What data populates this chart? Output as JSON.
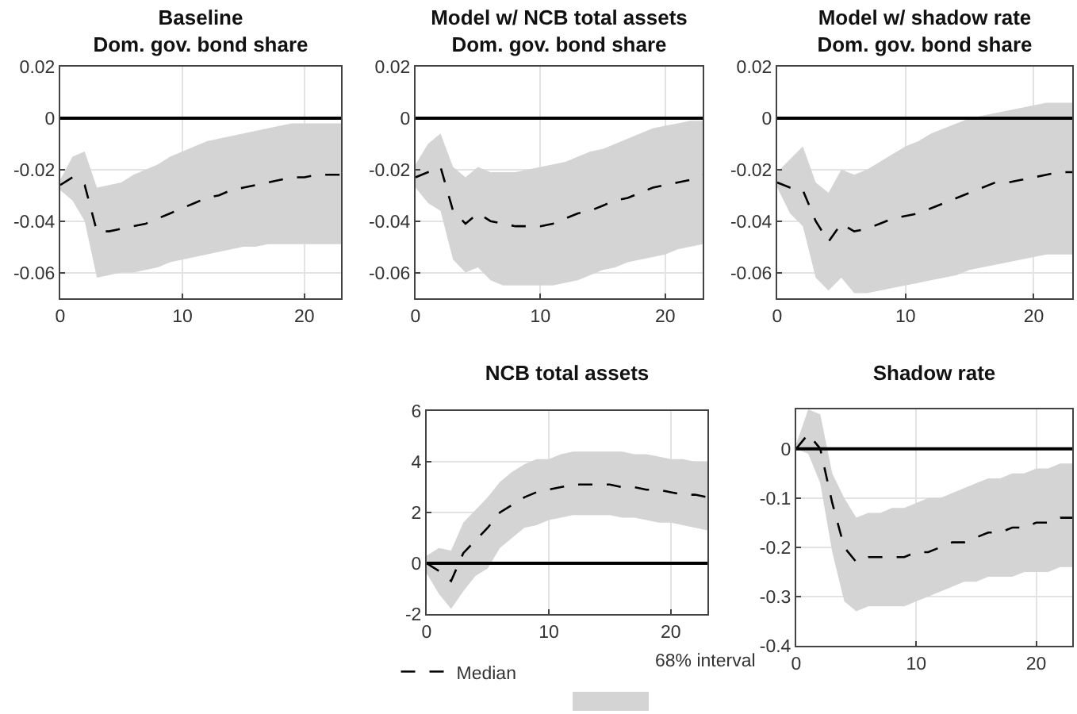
{
  "chart_data": [
    {
      "type": "line",
      "title": "Baseline",
      "subtitle": "Dom. gov. bond share",
      "x": [
        0,
        1,
        2,
        3,
        4,
        5,
        6,
        7,
        8,
        9,
        10,
        11,
        12,
        13,
        14,
        15,
        16,
        17,
        18,
        19,
        20,
        21,
        22,
        23
      ],
      "xlim": [
        0,
        23
      ],
      "xticks": [
        0,
        10,
        20
      ],
      "ylim": [
        -0.07,
        0.02
      ],
      "yticks": [
        -0.06,
        -0.04,
        -0.02,
        0,
        0.02
      ],
      "grid": true,
      "legend": false,
      "ref_lines": [
        {
          "axis": "y",
          "value": 0,
          "color": "#000000"
        }
      ],
      "series": [
        {
          "color": "#000000",
          "line_style": "dashed",
          "values": [
            -0.026,
            -0.023,
            -0.026,
            -0.044,
            -0.044,
            -0.043,
            -0.042,
            -0.041,
            -0.039,
            -0.037,
            -0.035,
            -0.033,
            -0.031,
            -0.03,
            -0.028,
            -0.027,
            -0.026,
            -0.025,
            -0.024,
            -0.023,
            -0.023,
            -0.022,
            -0.022,
            -0.022
          ],
          "lower": [
            -0.028,
            -0.032,
            -0.04,
            -0.062,
            -0.061,
            -0.06,
            -0.06,
            -0.059,
            -0.058,
            -0.056,
            -0.055,
            -0.054,
            -0.053,
            -0.052,
            -0.051,
            -0.05,
            -0.05,
            -0.049,
            -0.049,
            -0.049,
            -0.049,
            -0.049,
            -0.049,
            -0.049
          ],
          "upper": [
            -0.024,
            -0.015,
            -0.013,
            -0.027,
            -0.026,
            -0.025,
            -0.022,
            -0.02,
            -0.018,
            -0.015,
            -0.013,
            -0.011,
            -0.009,
            -0.008,
            -0.007,
            -0.006,
            -0.005,
            -0.004,
            -0.003,
            -0.002,
            -0.002,
            -0.002,
            -0.002,
            -0.002
          ]
        }
      ]
    },
    {
      "type": "line",
      "title": "Model w/ NCB total assets",
      "subtitle": "Dom. gov. bond share",
      "x": [
        0,
        1,
        2,
        3,
        4,
        5,
        6,
        7,
        8,
        9,
        10,
        11,
        12,
        13,
        14,
        15,
        16,
        17,
        18,
        19,
        20,
        21,
        22,
        23
      ],
      "xlim": [
        0,
        23
      ],
      "xticks": [
        0,
        10,
        20
      ],
      "ylim": [
        -0.07,
        0.02
      ],
      "yticks": [
        -0.06,
        -0.04,
        -0.02,
        0,
        0.02
      ],
      "grid": true,
      "legend": false,
      "ref_lines": [
        {
          "axis": "y",
          "value": 0,
          "color": "#000000"
        }
      ],
      "series": [
        {
          "color": "#000000",
          "line_style": "dashed",
          "values": [
            -0.023,
            -0.021,
            -0.019,
            -0.036,
            -0.041,
            -0.037,
            -0.04,
            -0.041,
            -0.042,
            -0.042,
            -0.042,
            -0.041,
            -0.039,
            -0.037,
            -0.036,
            -0.034,
            -0.032,
            -0.031,
            -0.029,
            -0.027,
            -0.026,
            -0.025,
            -0.024,
            -0.022
          ],
          "lower": [
            -0.027,
            -0.033,
            -0.036,
            -0.055,
            -0.06,
            -0.058,
            -0.063,
            -0.065,
            -0.065,
            -0.065,
            -0.065,
            -0.065,
            -0.064,
            -0.063,
            -0.061,
            -0.059,
            -0.058,
            -0.056,
            -0.055,
            -0.054,
            -0.053,
            -0.051,
            -0.05,
            -0.049
          ],
          "upper": [
            -0.018,
            -0.01,
            -0.006,
            -0.019,
            -0.023,
            -0.019,
            -0.021,
            -0.021,
            -0.021,
            -0.02,
            -0.019,
            -0.018,
            -0.017,
            -0.015,
            -0.013,
            -0.012,
            -0.01,
            -0.008,
            -0.006,
            -0.004,
            -0.003,
            -0.002,
            -0.001,
            -0.001
          ]
        }
      ]
    },
    {
      "type": "line",
      "title": "Model w/ shadow rate",
      "subtitle": "Dom. gov. bond share",
      "x": [
        0,
        1,
        2,
        3,
        4,
        5,
        6,
        7,
        8,
        9,
        10,
        11,
        12,
        13,
        14,
        15,
        16,
        17,
        18,
        19,
        20,
        21,
        22,
        23
      ],
      "xlim": [
        0,
        23
      ],
      "xticks": [
        0,
        10,
        20
      ],
      "ylim": [
        -0.07,
        0.02
      ],
      "yticks": [
        -0.06,
        -0.04,
        -0.02,
        0,
        0.02
      ],
      "grid": true,
      "legend": false,
      "ref_lines": [
        {
          "axis": "y",
          "value": 0,
          "color": "#000000"
        }
      ],
      "series": [
        {
          "color": "#000000",
          "line_style": "dashed",
          "values": [
            -0.025,
            -0.027,
            -0.028,
            -0.04,
            -0.048,
            -0.041,
            -0.044,
            -0.043,
            -0.041,
            -0.039,
            -0.038,
            -0.037,
            -0.035,
            -0.033,
            -0.031,
            -0.029,
            -0.027,
            -0.025,
            -0.025,
            -0.024,
            -0.023,
            -0.022,
            -0.021,
            -0.021
          ],
          "lower": [
            -0.027,
            -0.037,
            -0.042,
            -0.062,
            -0.067,
            -0.062,
            -0.068,
            -0.068,
            -0.067,
            -0.066,
            -0.065,
            -0.064,
            -0.063,
            -0.062,
            -0.061,
            -0.059,
            -0.058,
            -0.057,
            -0.056,
            -0.055,
            -0.054,
            -0.053,
            -0.053,
            -0.053
          ],
          "upper": [
            -0.021,
            -0.016,
            -0.011,
            -0.025,
            -0.029,
            -0.02,
            -0.022,
            -0.02,
            -0.017,
            -0.014,
            -0.011,
            -0.009,
            -0.006,
            -0.004,
            -0.002,
            0.0,
            0.001,
            0.002,
            0.003,
            0.004,
            0.005,
            0.006,
            0.006,
            0.006
          ]
        }
      ]
    },
    {
      "type": "line",
      "title": "NCB total assets",
      "x": [
        0,
        1,
        2,
        3,
        4,
        5,
        6,
        7,
        8,
        9,
        10,
        11,
        12,
        13,
        14,
        15,
        16,
        17,
        18,
        19,
        20,
        21,
        22,
        23
      ],
      "xlim": [
        0,
        23
      ],
      "xticks": [
        0,
        10,
        20
      ],
      "ylim": [
        -2,
        6
      ],
      "yticks": [
        -2,
        0,
        2,
        4,
        6
      ],
      "grid": true,
      "legend": "bottom",
      "annotations": [
        "68% interval"
      ],
      "ref_lines": [
        {
          "axis": "y",
          "value": 0,
          "color": "#000000"
        }
      ],
      "series": [
        {
          "name": "Median",
          "color": "#000000",
          "line_style": "dashed",
          "values": [
            0.0,
            -0.3,
            -0.7,
            0.4,
            0.9,
            1.4,
            2.0,
            2.3,
            2.6,
            2.8,
            2.9,
            3.0,
            3.1,
            3.1,
            3.1,
            3.1,
            3.0,
            3.0,
            2.9,
            2.9,
            2.8,
            2.7,
            2.7,
            2.6
          ],
          "lower": [
            -0.4,
            -1.2,
            -1.8,
            -1.1,
            -0.5,
            -0.2,
            0.6,
            1.0,
            1.4,
            1.5,
            1.7,
            1.8,
            1.9,
            1.9,
            1.9,
            1.9,
            1.8,
            1.8,
            1.7,
            1.6,
            1.6,
            1.5,
            1.4,
            1.3
          ],
          "upper": [
            0.3,
            0.6,
            0.5,
            1.6,
            2.1,
            2.6,
            3.2,
            3.6,
            3.9,
            4.1,
            4.1,
            4.3,
            4.4,
            4.4,
            4.4,
            4.4,
            4.4,
            4.3,
            4.3,
            4.2,
            4.1,
            4.1,
            4.0,
            4.0
          ]
        }
      ]
    },
    {
      "type": "line",
      "title": "Shadow rate",
      "x": [
        0,
        1,
        2,
        3,
        4,
        5,
        6,
        7,
        8,
        9,
        10,
        11,
        12,
        13,
        14,
        15,
        16,
        17,
        18,
        19,
        20,
        21,
        22,
        23
      ],
      "xlim": [
        0,
        23
      ],
      "xticks": [
        0,
        10,
        20
      ],
      "ylim": [
        -0.4,
        0.08
      ],
      "yticks": [
        -0.4,
        -0.3,
        -0.2,
        -0.1,
        0
      ],
      "grid": true,
      "legend": false,
      "ref_lines": [
        {
          "axis": "y",
          "value": 0,
          "color": "#000000"
        }
      ],
      "series": [
        {
          "color": "#000000",
          "line_style": "dashed",
          "values": [
            0.0,
            0.03,
            0.0,
            -0.11,
            -0.2,
            -0.23,
            -0.22,
            -0.22,
            -0.22,
            -0.22,
            -0.21,
            -0.21,
            -0.2,
            -0.19,
            -0.19,
            -0.18,
            -0.17,
            -0.17,
            -0.16,
            -0.16,
            -0.15,
            -0.15,
            -0.14,
            -0.14
          ],
          "lower": [
            0.0,
            -0.01,
            -0.07,
            -0.21,
            -0.31,
            -0.33,
            -0.32,
            -0.32,
            -0.32,
            -0.32,
            -0.31,
            -0.3,
            -0.29,
            -0.28,
            -0.27,
            -0.27,
            -0.26,
            -0.26,
            -0.26,
            -0.25,
            -0.25,
            -0.25,
            -0.24,
            -0.24
          ],
          "upper": [
            0.01,
            0.08,
            0.07,
            -0.05,
            -0.1,
            -0.14,
            -0.13,
            -0.13,
            -0.12,
            -0.12,
            -0.11,
            -0.1,
            -0.1,
            -0.09,
            -0.08,
            -0.07,
            -0.06,
            -0.06,
            -0.05,
            -0.05,
            -0.04,
            -0.04,
            -0.03,
            -0.03
          ]
        }
      ]
    }
  ]
}
